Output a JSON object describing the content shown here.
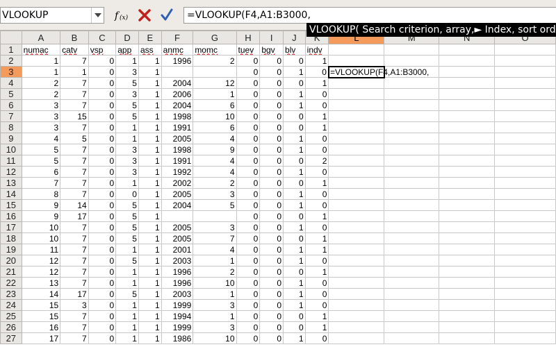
{
  "formula_bar": {
    "name_box": "VLOOKUP",
    "formula": "=VLOOKUP(F4,A1:B3000,"
  },
  "tooltip": "VLOOKUP( Search criterion, array,► Index, sort order",
  "grid": {
    "column_headers": [
      "A",
      "B",
      "C",
      "D",
      "E",
      "F",
      "G",
      "H",
      "I",
      "J",
      "K",
      "L",
      "M",
      "N",
      "O"
    ],
    "selected_column": "L",
    "selected_row": 3,
    "active_cell_text": "=VLOOKUP(F4,A1:B3000,",
    "header_labels": [
      "numac",
      "catv",
      "vsp",
      "app",
      "ass",
      "anmc",
      "momc",
      "tuev",
      "bgv",
      "blv",
      "indv"
    ],
    "rows": [
      {
        "num": "2",
        "cells": [
          "1",
          "7",
          "0",
          "1",
          "1",
          "1996",
          "2",
          "0",
          "0",
          "0",
          "1"
        ]
      },
      {
        "num": "3",
        "cells": [
          "1",
          "1",
          "0",
          "3",
          "1",
          "",
          "",
          "0",
          "0",
          "1",
          "0"
        ]
      },
      {
        "num": "4",
        "cells": [
          "2",
          "7",
          "0",
          "5",
          "1",
          "2004",
          "12",
          "0",
          "0",
          "0",
          "1"
        ]
      },
      {
        "num": "5",
        "cells": [
          "2",
          "7",
          "0",
          "3",
          "1",
          "2006",
          "1",
          "0",
          "0",
          "1",
          "0"
        ]
      },
      {
        "num": "6",
        "cells": [
          "3",
          "7",
          "0",
          "5",
          "1",
          "2004",
          "6",
          "0",
          "0",
          "1",
          "0"
        ]
      },
      {
        "num": "7",
        "cells": [
          "3",
          "15",
          "0",
          "5",
          "1",
          "1998",
          "10",
          "0",
          "0",
          "0",
          "1"
        ]
      },
      {
        "num": "8",
        "cells": [
          "3",
          "7",
          "0",
          "1",
          "1",
          "1991",
          "6",
          "0",
          "0",
          "0",
          "1"
        ]
      },
      {
        "num": "9",
        "cells": [
          "4",
          "5",
          "0",
          "1",
          "1",
          "2005",
          "4",
          "0",
          "0",
          "1",
          "0"
        ]
      },
      {
        "num": "10",
        "cells": [
          "5",
          "7",
          "0",
          "3",
          "1",
          "1998",
          "9",
          "0",
          "0",
          "1",
          "0"
        ]
      },
      {
        "num": "11",
        "cells": [
          "5",
          "7",
          "0",
          "3",
          "1",
          "1991",
          "4",
          "0",
          "0",
          "0",
          "2"
        ]
      },
      {
        "num": "12",
        "cells": [
          "6",
          "7",
          "0",
          "3",
          "1",
          "1992",
          "4",
          "0",
          "0",
          "1",
          "0"
        ]
      },
      {
        "num": "13",
        "cells": [
          "7",
          "7",
          "0",
          "1",
          "1",
          "2002",
          "2",
          "0",
          "0",
          "0",
          "1"
        ]
      },
      {
        "num": "14",
        "cells": [
          "8",
          "7",
          "0",
          "0",
          "1",
          "2005",
          "3",
          "0",
          "0",
          "1",
          "0"
        ]
      },
      {
        "num": "15",
        "cells": [
          "9",
          "14",
          "0",
          "5",
          "1",
          "2004",
          "5",
          "0",
          "0",
          "1",
          "0"
        ]
      },
      {
        "num": "16",
        "cells": [
          "9",
          "17",
          "0",
          "5",
          "1",
          "",
          "",
          "0",
          "0",
          "0",
          "1"
        ]
      },
      {
        "num": "17",
        "cells": [
          "10",
          "7",
          "0",
          "5",
          "1",
          "2005",
          "3",
          "0",
          "0",
          "1",
          "0"
        ]
      },
      {
        "num": "18",
        "cells": [
          "10",
          "7",
          "0",
          "5",
          "1",
          "2005",
          "7",
          "0",
          "0",
          "0",
          "1"
        ]
      },
      {
        "num": "19",
        "cells": [
          "11",
          "7",
          "0",
          "1",
          "1",
          "2001",
          "4",
          "0",
          "0",
          "1",
          "1"
        ]
      },
      {
        "num": "20",
        "cells": [
          "12",
          "7",
          "0",
          "5",
          "1",
          "2003",
          "1",
          "0",
          "0",
          "1",
          "0"
        ]
      },
      {
        "num": "21",
        "cells": [
          "12",
          "7",
          "0",
          "1",
          "1",
          "1996",
          "2",
          "0",
          "0",
          "0",
          "1"
        ]
      },
      {
        "num": "22",
        "cells": [
          "13",
          "7",
          "0",
          "1",
          "1",
          "1996",
          "10",
          "0",
          "0",
          "1",
          "0"
        ]
      },
      {
        "num": "23",
        "cells": [
          "14",
          "17",
          "0",
          "5",
          "1",
          "2003",
          "1",
          "0",
          "0",
          "1",
          "0"
        ]
      },
      {
        "num": "24",
        "cells": [
          "15",
          "3",
          "0",
          "1",
          "1",
          "1999",
          "3",
          "0",
          "0",
          "1",
          "0"
        ]
      },
      {
        "num": "25",
        "cells": [
          "15",
          "7",
          "0",
          "1",
          "1",
          "1994",
          "1",
          "0",
          "0",
          "0",
          "1"
        ]
      },
      {
        "num": "26",
        "cells": [
          "16",
          "7",
          "0",
          "1",
          "1",
          "1999",
          "3",
          "0",
          "0",
          "0",
          "1"
        ]
      },
      {
        "num": "27",
        "cells": [
          "17",
          "7",
          "0",
          "1",
          "1",
          "1986",
          "10",
          "0",
          "0",
          "1",
          "0"
        ]
      }
    ]
  },
  "colors": {
    "selected_header": "#f49a5a",
    "header_bg": "#e9e7e3",
    "cancel_red": "#c0221c",
    "accept_blue": "#2f5fb3"
  }
}
